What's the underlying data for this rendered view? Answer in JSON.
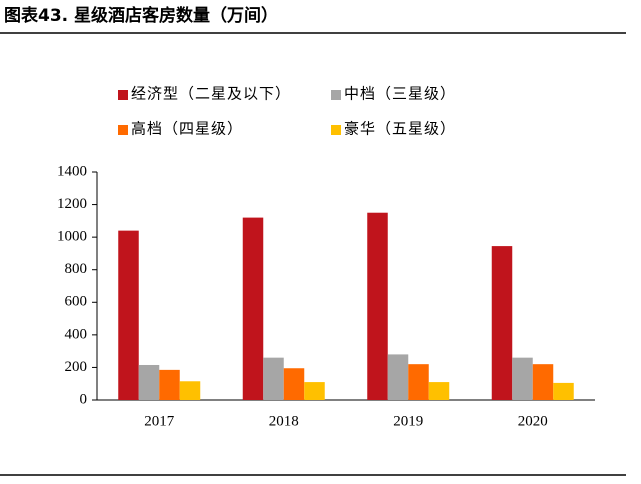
{
  "chart_data": {
    "type": "bar",
    "title": "图表43.  星级酒店客房数量（万间）",
    "categories": [
      "2017",
      "2018",
      "2019",
      "2020"
    ],
    "series": [
      {
        "name": "经济型（二星及以下）",
        "color": "#c0141c",
        "values": [
          1040,
          1120,
          1150,
          945
        ]
      },
      {
        "name": "中档（三星级）",
        "color": "#a6a6a6",
        "values": [
          215,
          260,
          280,
          260
        ]
      },
      {
        "name": "高档（四星级）",
        "color": "#ff6a00",
        "values": [
          185,
          195,
          220,
          220
        ]
      },
      {
        "name": "豪华（五星级）",
        "color": "#ffc000",
        "values": [
          115,
          110,
          110,
          105
        ]
      }
    ],
    "ylim": [
      0,
      1400
    ],
    "yticks": [
      0,
      200,
      400,
      600,
      800,
      1000,
      1200,
      1400
    ],
    "grid": false
  }
}
